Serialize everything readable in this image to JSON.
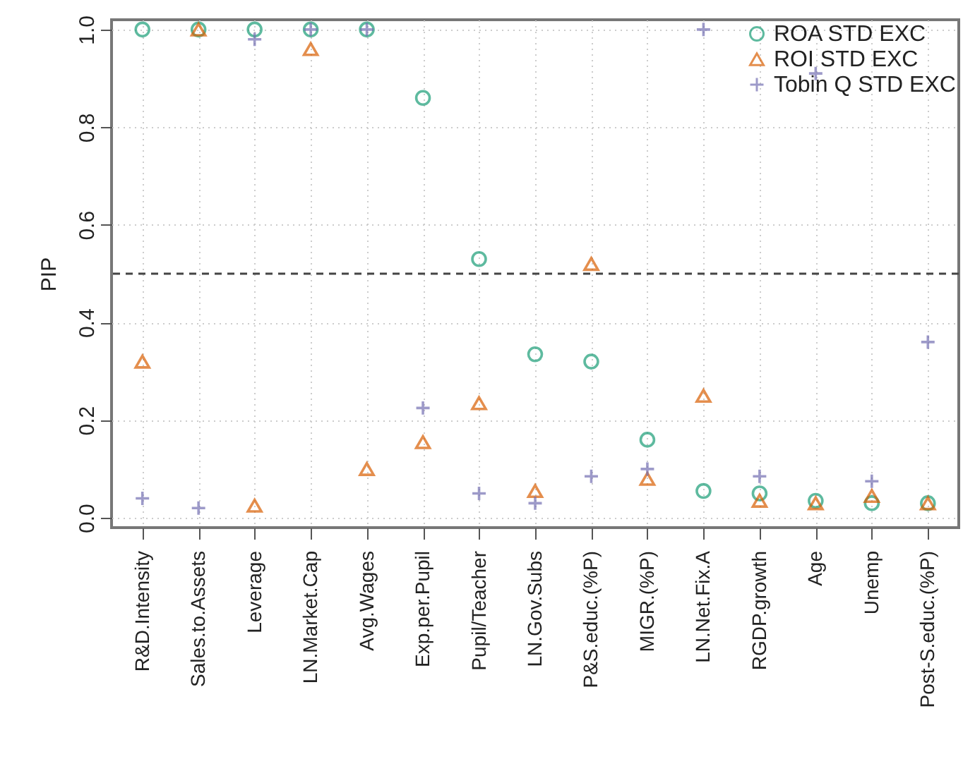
{
  "chart_data": {
    "type": "scatter",
    "ylabel": "PIP",
    "categories": [
      "R&D.Intensity",
      "Sales.to.Assets",
      "Leverage",
      "LN.Market.Cap",
      "Avg.Wages",
      "Exp.per.Pupil",
      "Pupil/Teacher",
      "LN.Gov.Subs",
      "P&S.educ.(%P)",
      "MIGR.(%P)",
      "LN.Net.Fix.A",
      "RGDP.growth",
      "Age",
      "Unemp",
      "Post-S.educ.(%P)"
    ],
    "series": [
      {
        "name": "ROA STD EXC",
        "color": "#1b9e77",
        "marker": "circle",
        "values": [
          1.0,
          1.0,
          1.0,
          1.0,
          1.0,
          0.86,
          0.53,
          0.335,
          0.32,
          0.16,
          0.055,
          0.05,
          0.035,
          0.03,
          0.03
        ]
      },
      {
        "name": "ROI STD EXC",
        "color": "#d95f02",
        "marker": "triangle",
        "values": [
          0.32,
          1.0,
          0.025,
          0.96,
          0.1,
          0.155,
          0.235,
          0.055,
          0.52,
          0.08,
          0.25,
          0.035,
          0.03,
          0.045,
          0.03
        ]
      },
      {
        "name": "Tobin Q STD EXC",
        "color": "#7570b3",
        "marker": "cross",
        "values": [
          0.04,
          0.02,
          0.98,
          1.0,
          1.0,
          0.225,
          0.05,
          0.03,
          0.085,
          0.1,
          1.0,
          0.085,
          0.91,
          0.075,
          0.36
        ]
      }
    ],
    "ylim": [
      -0.02,
      1.02
    ],
    "yticks": [
      {
        "value": 0,
        "label": "0.0"
      },
      {
        "value": 0.2,
        "label": "0.2"
      },
      {
        "value": 0.4,
        "label": "0.4"
      },
      {
        "value": 0.6,
        "label": "0.6"
      },
      {
        "value": 0.8,
        "label": "0.8"
      },
      {
        "value": 1,
        "label": "1.0"
      }
    ],
    "grid": true,
    "legend": "top right",
    "ref_lines": [
      {
        "axis": "y",
        "value": 0.5,
        "line_style": "dashed"
      }
    ]
  }
}
